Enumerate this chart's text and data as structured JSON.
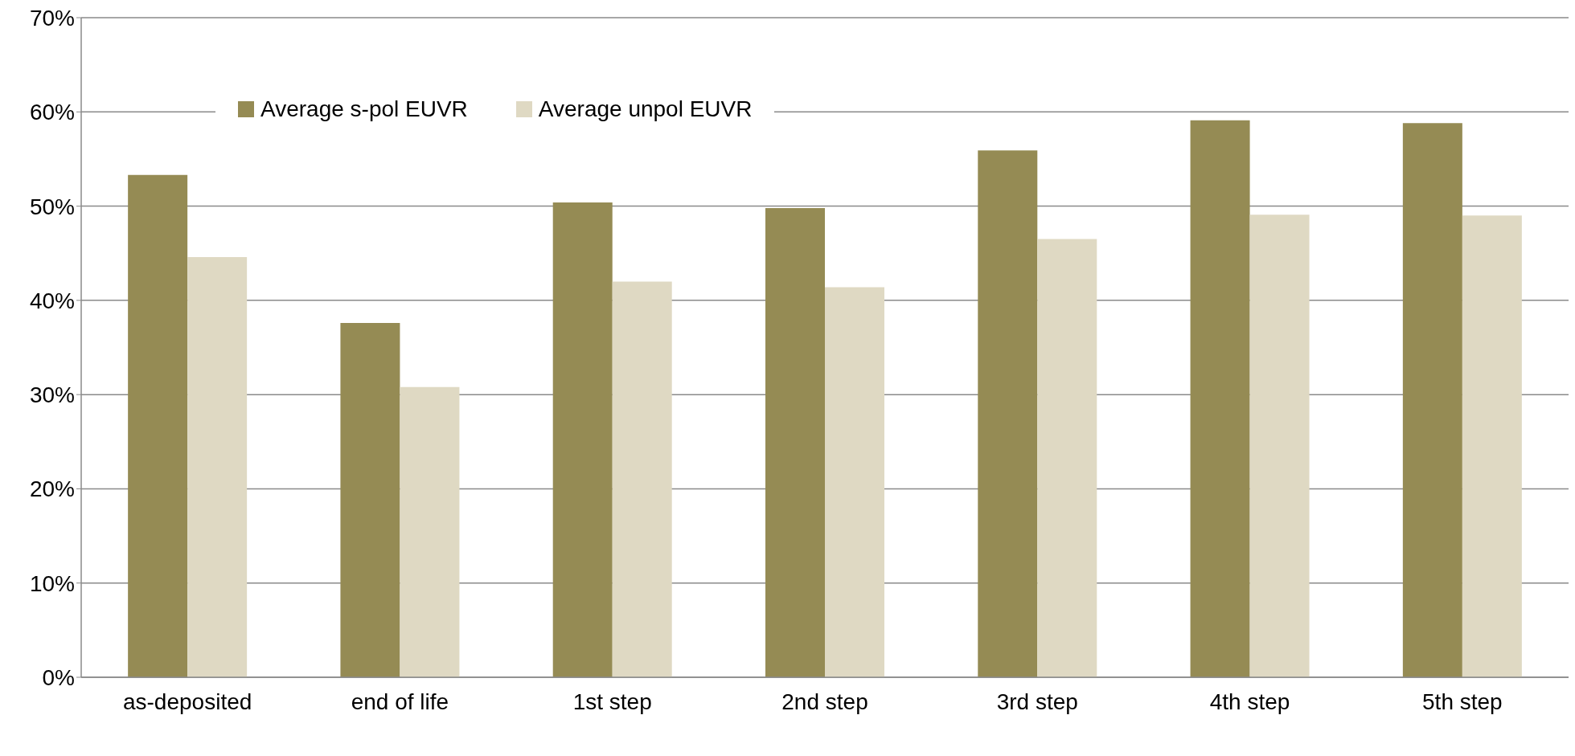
{
  "chart_data": {
    "type": "bar",
    "categories": [
      "as-deposited",
      "end of life",
      "1st step",
      "2nd step",
      "3rd step",
      "4th step",
      "5th step"
    ],
    "series": [
      {
        "name": "Average s-pol EUVR",
        "color": "#958b54",
        "values": [
          53.3,
          37.6,
          50.4,
          49.8,
          55.9,
          59.1,
          58.8
        ]
      },
      {
        "name": "Average unpol EUVR",
        "color": "#dfd9c3",
        "values": [
          44.6,
          30.8,
          42.0,
          41.4,
          46.5,
          49.1,
          49.0
        ]
      }
    ],
    "ylim": [
      0,
      70
    ],
    "yticks": [
      {
        "value": 0,
        "label": "0%"
      },
      {
        "value": 10,
        "label": "10%"
      },
      {
        "value": 20,
        "label": "20%"
      },
      {
        "value": 30,
        "label": "30%"
      },
      {
        "value": 40,
        "label": "40%"
      },
      {
        "value": 50,
        "label": "50%"
      },
      {
        "value": 60,
        "label": "60%"
      },
      {
        "value": 70,
        "label": "70%"
      }
    ],
    "grid": "y",
    "legend": "top"
  }
}
